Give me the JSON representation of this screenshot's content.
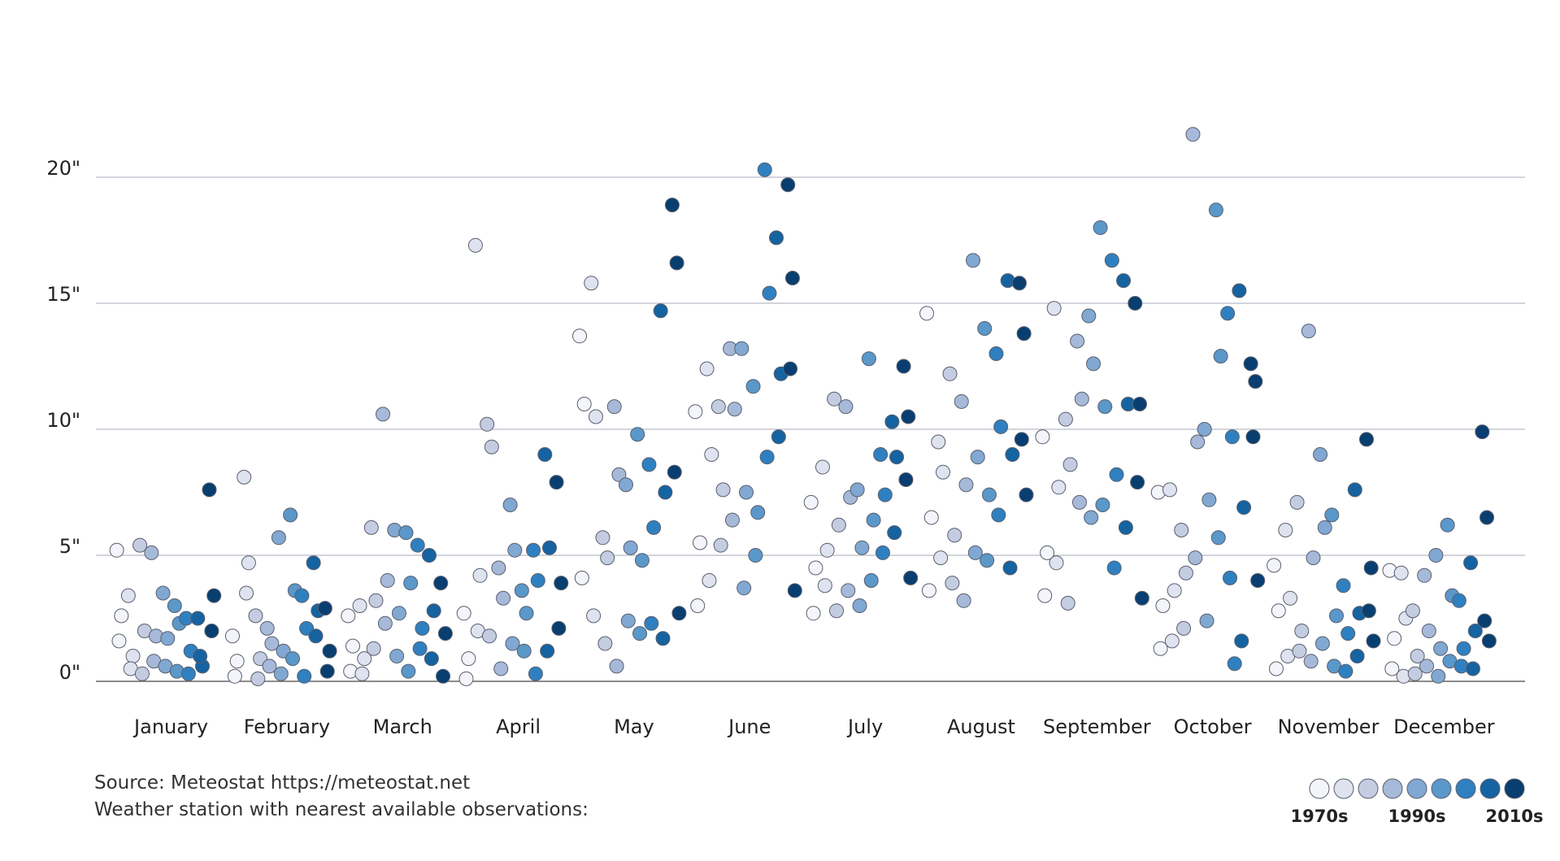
{
  "chart_data": {
    "type": "scatter",
    "xlim": [
      -0.15,
      12.2
    ],
    "ylim": [
      0,
      22
    ],
    "grid": true,
    "xticks": [
      {
        "value": 0.5,
        "label": "January"
      },
      {
        "value": 1.5,
        "label": "February"
      },
      {
        "value": 2.5,
        "label": "March"
      },
      {
        "value": 3.5,
        "label": "April"
      },
      {
        "value": 4.5,
        "label": "May"
      },
      {
        "value": 5.5,
        "label": "June"
      },
      {
        "value": 6.5,
        "label": "July"
      },
      {
        "value": 7.5,
        "label": "August"
      },
      {
        "value": 8.5,
        "label": "September"
      },
      {
        "value": 9.5,
        "label": "October"
      },
      {
        "value": 10.5,
        "label": "November"
      },
      {
        "value": 11.5,
        "label": "December"
      }
    ],
    "yticks": [
      {
        "value": 0,
        "label": "0\""
      },
      {
        "value": 5,
        "label": "5\""
      },
      {
        "value": 10,
        "label": "10\""
      },
      {
        "value": 15,
        "label": "15\""
      },
      {
        "value": 20,
        "label": "20\""
      }
    ],
    "notes": [
      "Source: Meteostat https://meteostat.net",
      "Weather station with nearest available observations:"
    ],
    "series": [
      {
        "name": "1970s",
        "color": "#f4f4fb",
        "x": [
          0.03,
          0.07,
          0.05,
          1.03,
          1.07,
          1.05,
          2.03,
          2.07,
          2.05,
          3.03,
          3.07,
          3.05,
          4.03,
          4.07,
          4.05,
          5.03,
          5.07,
          5.05,
          6.03,
          6.07,
          6.05,
          7.03,
          7.07,
          7.05,
          8.03,
          8.07,
          8.05,
          9.03,
          9.07,
          9.05,
          10.03,
          10.07,
          10.05,
          11.03,
          11.07,
          11.05
        ],
        "values": [
          5.2,
          2.6,
          1.6,
          1.8,
          0.8,
          0.2,
          2.6,
          1.4,
          0.4,
          2.7,
          0.9,
          0.1,
          13.7,
          11.0,
          4.1,
          10.7,
          5.5,
          3.0,
          7.1,
          4.5,
          2.7,
          14.6,
          6.5,
          3.6,
          9.7,
          5.1,
          3.4,
          7.5,
          3.0,
          1.3,
          4.6,
          2.8,
          0.5,
          4.4,
          1.7,
          0.5
        ]
      },
      {
        "name": null,
        "color": "#dfe2ef",
        "x": [
          0.13,
          0.17,
          0.15,
          1.13,
          1.17,
          1.15,
          2.13,
          2.17,
          2.15,
          3.13,
          3.17,
          3.15,
          4.13,
          4.17,
          4.15,
          5.13,
          5.17,
          5.15,
          6.13,
          6.17,
          6.15,
          7.13,
          7.17,
          7.15,
          8.13,
          8.17,
          8.15,
          9.13,
          9.17,
          9.15,
          10.13,
          10.17,
          10.15,
          11.13,
          11.17,
          11.15
        ],
        "values": [
          3.4,
          1.0,
          0.5,
          8.1,
          4.7,
          3.5,
          3.0,
          0.9,
          0.3,
          17.3,
          4.2,
          2.0,
          15.8,
          10.5,
          2.6,
          12.4,
          9.0,
          4.0,
          8.5,
          5.2,
          3.8,
          9.5,
          8.3,
          4.9,
          14.8,
          7.7,
          4.7,
          7.6,
          3.6,
          1.6,
          6.0,
          3.3,
          1.0,
          4.3,
          2.5,
          0.2
        ]
      },
      {
        "name": null,
        "color": "#c4cce2",
        "x": [
          0.23,
          0.27,
          0.25,
          1.23,
          1.27,
          1.25,
          2.23,
          2.27,
          2.25,
          3.23,
          3.27,
          3.25,
          4.23,
          4.27,
          4.25,
          5.23,
          5.27,
          5.25,
          6.23,
          6.27,
          6.25,
          7.23,
          7.27,
          7.25,
          8.23,
          8.27,
          8.25,
          9.23,
          9.27,
          9.25,
          10.23,
          10.27,
          10.25,
          11.23,
          11.27,
          11.25
        ],
        "values": [
          5.4,
          2.0,
          0.3,
          2.6,
          0.9,
          0.1,
          6.1,
          3.2,
          1.3,
          10.2,
          9.3,
          1.8,
          5.7,
          4.9,
          1.5,
          10.9,
          7.6,
          5.4,
          11.2,
          6.2,
          2.8,
          12.2,
          5.8,
          3.9,
          10.4,
          8.6,
          3.1,
          6.0,
          4.3,
          2.1,
          7.1,
          2.0,
          1.2,
          2.8,
          1.0,
          0.3
        ]
      },
      {
        "name": null,
        "color": "#a6b9d9",
        "x": [
          0.33,
          0.37,
          0.35,
          1.33,
          1.37,
          1.35,
          2.33,
          2.37,
          2.35,
          3.33,
          3.37,
          3.35,
          4.33,
          4.37,
          4.35,
          5.33,
          5.37,
          5.35,
          6.33,
          6.37,
          6.35,
          7.33,
          7.37,
          7.35,
          8.33,
          8.37,
          8.35,
          9.33,
          9.37,
          9.35,
          10.33,
          10.37,
          10.35,
          11.33,
          11.37,
          11.35
        ],
        "values": [
          5.1,
          1.8,
          0.8,
          2.1,
          1.5,
          0.6,
          10.6,
          4.0,
          2.3,
          4.5,
          3.3,
          0.5,
          10.9,
          8.2,
          0.6,
          13.2,
          10.8,
          6.4,
          10.9,
          7.3,
          3.6,
          11.1,
          7.8,
          3.2,
          13.5,
          11.2,
          7.1,
          21.7,
          9.5,
          4.9,
          13.9,
          4.9,
          0.8,
          4.2,
          2.0,
          0.6
        ]
      },
      {
        "name": "1990s",
        "color": "#80a8d2",
        "x": [
          0.43,
          0.47,
          0.45,
          1.43,
          1.47,
          1.45,
          2.43,
          2.47,
          2.45,
          3.43,
          3.47,
          3.45,
          4.43,
          4.47,
          4.45,
          5.43,
          5.47,
          5.45,
          6.43,
          6.47,
          6.45,
          7.43,
          7.47,
          7.45,
          8.43,
          8.47,
          8.45,
          9.43,
          9.47,
          9.45,
          10.43,
          10.47,
          10.45,
          11.43,
          11.47,
          11.45
        ],
        "values": [
          3.5,
          1.7,
          0.6,
          5.7,
          1.2,
          0.3,
          6.0,
          2.7,
          1.0,
          7.0,
          5.2,
          1.5,
          7.8,
          5.3,
          2.4,
          13.2,
          7.5,
          3.7,
          7.6,
          5.3,
          3.0,
          16.7,
          8.9,
          5.1,
          14.5,
          12.6,
          6.5,
          10.0,
          7.2,
          2.4,
          9.0,
          6.1,
          1.5,
          5.0,
          1.3,
          0.2
        ]
      },
      {
        "name": null,
        "color": "#5a98ca",
        "x": [
          0.53,
          0.57,
          0.55,
          1.53,
          1.57,
          1.55,
          2.53,
          2.57,
          2.55,
          3.53,
          3.57,
          3.55,
          4.53,
          4.57,
          4.55,
          5.53,
          5.57,
          5.55,
          6.53,
          6.57,
          6.55,
          7.53,
          7.57,
          7.55,
          8.53,
          8.57,
          8.55,
          9.53,
          9.57,
          9.55,
          10.53,
          10.57,
          10.55,
          11.53,
          11.57,
          11.55
        ],
        "values": [
          3.0,
          2.3,
          0.4,
          6.6,
          3.6,
          0.9,
          5.9,
          3.9,
          0.4,
          3.6,
          2.7,
          1.2,
          9.8,
          4.8,
          1.9,
          11.7,
          6.7,
          5.0,
          12.8,
          6.4,
          4.0,
          14.0,
          7.4,
          4.8,
          18.0,
          10.9,
          7.0,
          18.7,
          12.9,
          5.7,
          6.6,
          2.6,
          0.6,
          6.2,
          3.4,
          0.8
        ]
      },
      {
        "name": null,
        "color": "#2f80c0",
        "x": [
          0.63,
          0.67,
          0.65,
          1.63,
          1.67,
          1.65,
          2.63,
          2.67,
          2.65,
          3.63,
          3.67,
          3.65,
          4.63,
          4.67,
          4.65,
          5.63,
          5.67,
          5.65,
          6.63,
          6.67,
          6.65,
          7.63,
          7.67,
          7.65,
          8.63,
          8.67,
          8.65,
          9.63,
          9.67,
          9.65,
          9.69,
          10.63,
          10.67,
          10.65,
          11.63,
          11.67,
          11.65
        ],
        "values": [
          2.5,
          1.2,
          0.3,
          3.4,
          2.1,
          0.2,
          5.4,
          2.1,
          1.3,
          5.2,
          4.0,
          0.3,
          8.6,
          6.1,
          2.3,
          20.3,
          15.4,
          8.9,
          9.0,
          7.4,
          5.1,
          13.0,
          10.1,
          6.6,
          16.7,
          8.2,
          4.5,
          14.6,
          9.7,
          4.1,
          0.7,
          3.8,
          1.9,
          0.4,
          3.2,
          1.3,
          0.6
        ]
      },
      {
        "name": null,
        "color": "#1563a1",
        "x": [
          0.73,
          0.77,
          0.75,
          1.73,
          1.77,
          1.75,
          2.73,
          2.77,
          2.75,
          3.73,
          3.77,
          3.75,
          4.73,
          4.77,
          4.75,
          5.73,
          5.77,
          5.75,
          6.73,
          6.77,
          6.75,
          7.73,
          7.77,
          7.75,
          8.73,
          8.77,
          8.75,
          9.73,
          9.77,
          9.75,
          10.73,
          10.77,
          10.75,
          11.73,
          11.77,
          11.75
        ],
        "values": [
          2.5,
          0.6,
          1.0,
          4.7,
          2.8,
          1.8,
          5.0,
          2.8,
          0.9,
          9.0,
          5.3,
          1.2,
          14.7,
          7.5,
          1.7,
          17.6,
          12.2,
          9.7,
          10.3,
          8.9,
          5.9,
          15.9,
          9.0,
          4.5,
          15.9,
          11.0,
          6.1,
          15.5,
          6.9,
          1.6,
          7.6,
          2.7,
          1.0,
          4.7,
          2.0,
          0.5
        ]
      },
      {
        "name": "2010s",
        "color": "#083f70",
        "x": [
          0.83,
          0.87,
          0.85,
          1.83,
          1.87,
          1.85,
          2.83,
          2.87,
          2.85,
          3.83,
          3.87,
          3.85,
          4.83,
          4.87,
          4.85,
          4.89,
          5.83,
          5.87,
          5.85,
          5.89,
          6.83,
          6.87,
          6.85,
          6.89,
          7.83,
          7.87,
          7.85,
          7.89,
          8.83,
          8.87,
          8.85,
          8.89,
          9.83,
          9.87,
          9.85,
          9.89,
          10.83,
          10.87,
          10.85,
          10.89,
          11.83,
          11.87,
          11.85,
          11.89
        ],
        "values": [
          7.6,
          3.4,
          2.0,
          2.9,
          1.2,
          0.4,
          3.9,
          1.9,
          0.2,
          7.9,
          3.9,
          2.1,
          18.9,
          16.6,
          8.3,
          2.7,
          19.7,
          16.0,
          12.4,
          3.6,
          12.5,
          10.5,
          8.0,
          4.1,
          15.8,
          13.8,
          9.6,
          7.4,
          15.0,
          11.0,
          7.9,
          3.3,
          12.6,
          11.9,
          9.7,
          4.0,
          9.6,
          4.5,
          2.8,
          1.6,
          9.9,
          6.5,
          2.4,
          1.6
        ]
      }
    ]
  }
}
